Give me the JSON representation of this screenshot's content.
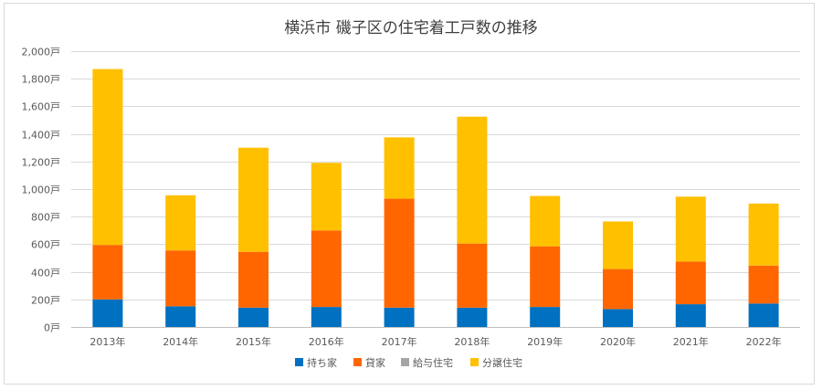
{
  "chart_data": {
    "type": "bar",
    "stacked": true,
    "title": "横浜市 磯子区の住宅着工戸数の推移",
    "categories": [
      "2013年",
      "2014年",
      "2015年",
      "2016年",
      "2017年",
      "2018年",
      "2019年",
      "2020年",
      "2021年",
      "2022年"
    ],
    "series": [
      {
        "name": "持ち家",
        "color": "#0070c0",
        "values": [
          200,
          150,
          140,
          145,
          140,
          140,
          145,
          130,
          165,
          170
        ]
      },
      {
        "name": "貸家",
        "color": "#ff6600",
        "values": [
          395,
          405,
          405,
          555,
          790,
          465,
          440,
          290,
          310,
          275
        ]
      },
      {
        "name": "給与住宅",
        "color": "#a5a5a5",
        "values": [
          0,
          0,
          0,
          0,
          0,
          0,
          0,
          0,
          0,
          0
        ]
      },
      {
        "name": "分譲住宅",
        "color": "#ffc000",
        "values": [
          1275,
          400,
          755,
          490,
          445,
          920,
          365,
          345,
          470,
          450
        ]
      }
    ],
    "ylim": [
      0,
      2000
    ],
    "yticks": [
      0,
      200,
      400,
      600,
      800,
      1000,
      1200,
      1400,
      1600,
      1800,
      2000
    ],
    "ytick_labels": [
      "0戸",
      "200戸",
      "400戸",
      "600戸",
      "800戸",
      "1,000戸",
      "1,200戸",
      "1,400戸",
      "1,600戸",
      "1,800戸",
      "2,000戸"
    ],
    "grid": true,
    "legend": "bottom"
  }
}
